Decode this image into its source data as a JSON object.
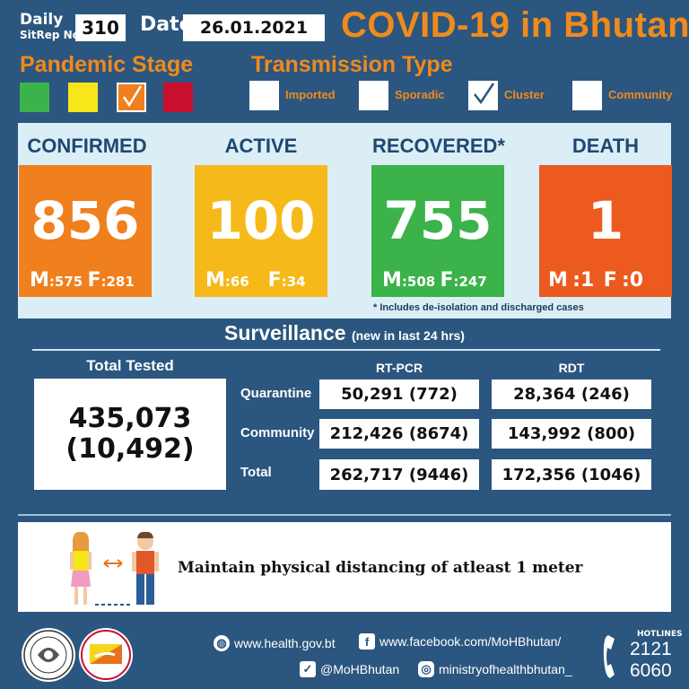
{
  "header": {
    "sitrep_label_1": "Daily",
    "sitrep_label_2": "SitRep No.",
    "sitrep_no": "310",
    "date_label": "Date",
    "date": "26.01.2021",
    "title": "COVID-19 in Bhutan"
  },
  "pandemic_stage": {
    "title": "Pandemic Stage",
    "colors": [
      "#3bb34a",
      "#f6e61a",
      "#f07f1e",
      "#c8102e"
    ],
    "selected_index": 2
  },
  "transmission": {
    "title": "Transmission Type",
    "types": [
      {
        "label": "Imported",
        "checked": false
      },
      {
        "label": "Sporadic",
        "checked": false
      },
      {
        "label": "Cluster",
        "checked": true
      },
      {
        "label": "Community",
        "checked": false
      }
    ]
  },
  "stats": [
    {
      "label": "CONFIRMED",
      "value": "856",
      "m_label": "M",
      "m": ":575",
      "f_label": "F",
      "f": ":281",
      "color": "#f07f1e"
    },
    {
      "label": "ACTIVE",
      "value": "100",
      "m_label": "M",
      "m": ":66",
      "f_label": "F",
      "f": ":34",
      "color": "#f6b91a"
    },
    {
      "label": "RECOVERED*",
      "value": "755",
      "m_label": "M",
      "m": ":508",
      "f_label": "F",
      "f": ":247",
      "color": "#3bb34a"
    },
    {
      "label": "DEATH",
      "value": "1",
      "m_label": "M",
      "m": ":1",
      "f_label": "F",
      "f": ":0",
      "color": "#ec5a20"
    }
  ],
  "footnote": "* Includes de-isolation and discharged cases",
  "surveillance": {
    "title": "Surveillance",
    "subtitle": "(new in last 24 hrs)",
    "total_tested_label": "Total Tested",
    "total_tested": "435,073",
    "total_tested_new": "(10,492)",
    "rtpcr_label": "RT-PCR",
    "rdt_label": "RDT",
    "rows": [
      {
        "label": "Quarantine",
        "rtpcr": "50,291 (772)",
        "rdt": "28,364 (246)"
      },
      {
        "label": "Community",
        "rtpcr": "212,426 (8674)",
        "rdt": "143,992 (800)"
      },
      {
        "label": "Total",
        "rtpcr": "262,717 (9446)",
        "rdt": "172,356 (1046)"
      }
    ]
  },
  "message": "Maintain physical distancing of atleast 1 meter",
  "footer": {
    "website": "www.health.gov.bt",
    "facebook": "www.facebook.com/MoHBhutan/",
    "twitter": "@MoHBhutan",
    "instagram": "ministryofhealthbhutan_",
    "hotlines_label": "HOTLINES",
    "hotline_1": "2121",
    "hotline_2": "6060"
  }
}
